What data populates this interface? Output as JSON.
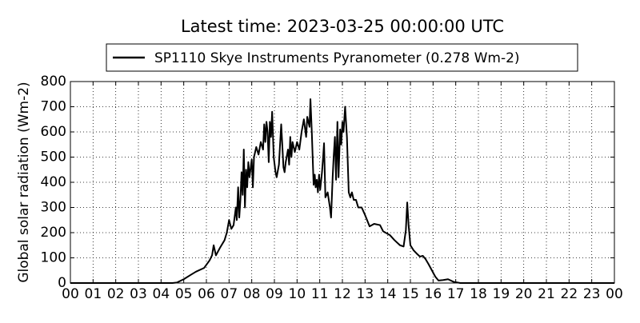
{
  "chart_data": {
    "type": "line",
    "title": "Latest time: 2023-03-25 00:00:00 UTC",
    "ylabel": "Global solar radiation (Wm-2)",
    "legend": "upper center",
    "grid": true,
    "xlim": [
      0,
      24
    ],
    "ylim": [
      0,
      800
    ],
    "yticks": [
      0,
      100,
      200,
      300,
      400,
      500,
      600,
      700,
      800
    ],
    "xticks": [
      {
        "value": 0,
        "label": "00"
      },
      {
        "value": 1,
        "label": "01"
      },
      {
        "value": 2,
        "label": "02"
      },
      {
        "value": 3,
        "label": "03"
      },
      {
        "value": 4,
        "label": "04"
      },
      {
        "value": 5,
        "label": "05"
      },
      {
        "value": 6,
        "label": "06"
      },
      {
        "value": 7,
        "label": "07"
      },
      {
        "value": 8,
        "label": "08"
      },
      {
        "value": 9,
        "label": "09"
      },
      {
        "value": 10,
        "label": "10"
      },
      {
        "value": 11,
        "label": "11"
      },
      {
        "value": 12,
        "label": "12"
      },
      {
        "value": 13,
        "label": "13"
      },
      {
        "value": 14,
        "label": "14"
      },
      {
        "value": 15,
        "label": "15"
      },
      {
        "value": 16,
        "label": "16"
      },
      {
        "value": 17,
        "label": "17"
      },
      {
        "value": 18,
        "label": "18"
      },
      {
        "value": 19,
        "label": "19"
      },
      {
        "value": 20,
        "label": "20"
      },
      {
        "value": 21,
        "label": "21"
      },
      {
        "value": 22,
        "label": "22"
      },
      {
        "value": 23,
        "label": "23"
      },
      {
        "value": 24,
        "label": "00"
      }
    ],
    "x": [
      0,
      4.5,
      4.7,
      5.0,
      5.3,
      5.54,
      5.9,
      6.14,
      6.25,
      6.32,
      6.42,
      6.6,
      6.8,
      6.9,
      7.0,
      7.1,
      7.2,
      7.3,
      7.34,
      7.4,
      7.45,
      7.5,
      7.55,
      7.6,
      7.65,
      7.7,
      7.75,
      7.8,
      7.85,
      7.9,
      8.0,
      8.05,
      8.1,
      8.2,
      8.3,
      8.4,
      8.5,
      8.55,
      8.6,
      8.65,
      8.7,
      8.75,
      8.8,
      8.85,
      8.9,
      8.97,
      9.05,
      9.1,
      9.2,
      9.3,
      9.4,
      9.45,
      9.5,
      9.6,
      9.65,
      9.7,
      9.75,
      9.8,
      9.9,
      10.0,
      10.1,
      10.2,
      10.3,
      10.4,
      10.45,
      10.55,
      10.59,
      10.65,
      10.73,
      10.78,
      10.82,
      10.87,
      10.92,
      10.97,
      11.02,
      11.1,
      11.15,
      11.19,
      11.25,
      11.35,
      11.45,
      11.5,
      11.57,
      11.62,
      11.67,
      11.72,
      11.78,
      11.83,
      11.9,
      11.95,
      12.0,
      12.05,
      12.12,
      12.2,
      12.28,
      12.35,
      12.42,
      12.5,
      12.6,
      12.7,
      12.85,
      13.0,
      13.2,
      13.4,
      13.66,
      13.8,
      14.1,
      14.3,
      14.54,
      14.7,
      14.8,
      14.86,
      14.92,
      15.0,
      15.14,
      15.3,
      15.42,
      15.55,
      15.67,
      15.8,
      15.95,
      16.1,
      16.24,
      16.45,
      16.66,
      16.9,
      17.2,
      24
    ],
    "values": [
      0,
      0,
      2,
      15,
      32,
      45,
      60,
      90,
      110,
      150,
      110,
      140,
      170,
      200,
      250,
      215,
      230,
      300,
      250,
      380,
      260,
      330,
      440,
      350,
      530,
      300,
      450,
      380,
      480,
      420,
      490,
      380,
      500,
      540,
      510,
      560,
      530,
      630,
      560,
      640,
      600,
      480,
      640,
      580,
      680,
      500,
      440,
      420,
      470,
      630,
      460,
      440,
      480,
      530,
      470,
      580,
      500,
      560,
      520,
      560,
      530,
      600,
      650,
      580,
      660,
      620,
      730,
      600,
      390,
      430,
      380,
      410,
      360,
      430,
      370,
      440,
      500,
      555,
      340,
      360,
      300,
      260,
      420,
      510,
      580,
      410,
      640,
      420,
      610,
      550,
      640,
      600,
      700,
      580,
      360,
      340,
      360,
      330,
      330,
      300,
      300,
      270,
      225,
      235,
      230,
      205,
      190,
      170,
      150,
      145,
      210,
      320,
      230,
      150,
      130,
      115,
      105,
      108,
      95,
      75,
      50,
      25,
      10,
      12,
      15,
      5,
      0,
      0
    ],
    "series_name": "SP1110 Skye Instruments Pyranometer (0.278 Wm-2)",
    "color": "#000000"
  }
}
